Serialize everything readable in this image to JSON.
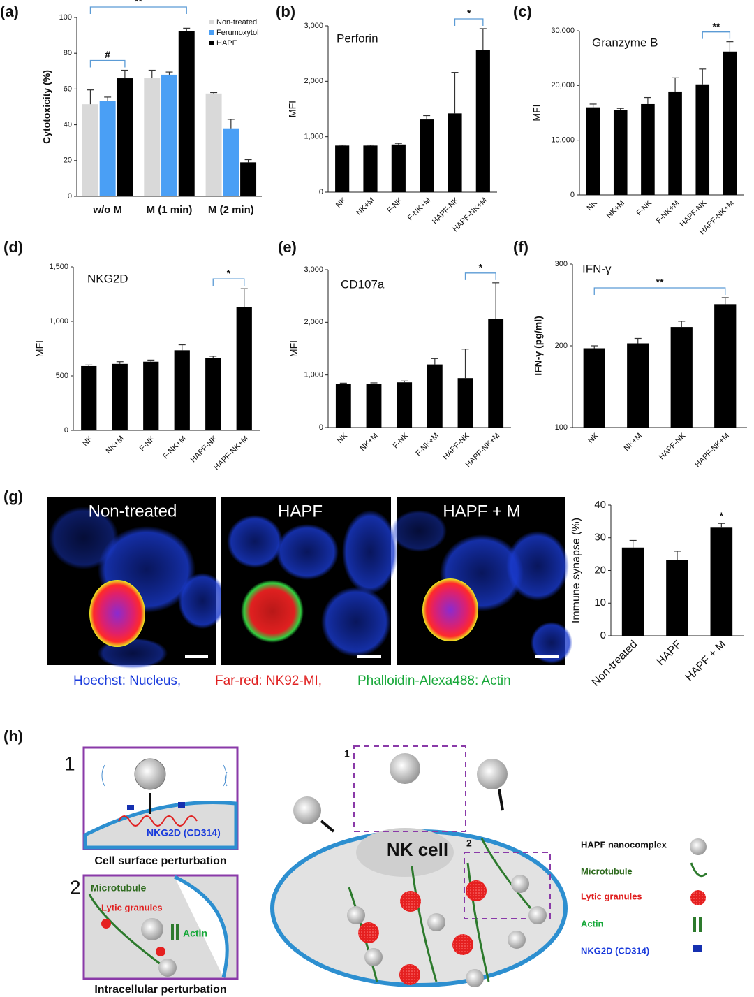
{
  "chart_data": [
    {
      "type": "bar",
      "label": "(a)",
      "ylabel": "Cytotoxicity (%)",
      "categories": [
        "w/o M",
        "M (1 min)",
        "M (2 min)"
      ],
      "series": [
        {
          "name": "Non-treated",
          "color": "#d9d9d9",
          "values": [
            51.5,
            66,
            57.5
          ],
          "errors": [
            8,
            4.5,
            0.5
          ]
        },
        {
          "name": "Ferumoxytol",
          "color": "#4a9ff5",
          "values": [
            53.5,
            68,
            38
          ],
          "errors": [
            2,
            1.5,
            5
          ]
        },
        {
          "name": "HAPF",
          "color": "#000000",
          "values": [
            66,
            92.5,
            19
          ],
          "errors": [
            4.5,
            1.5,
            1.5
          ]
        }
      ],
      "ylim": [
        0,
        100
      ],
      "yticks": [
        0,
        20,
        40,
        60,
        80,
        100
      ],
      "legend": "top-right",
      "annotations": [
        {
          "text": "#",
          "span": [
            [
              "w/o M",
              "Non-treated"
            ],
            [
              "w/o M",
              "HAPF"
            ]
          ]
        },
        {
          "text": "**",
          "span": [
            [
              "w/o M",
              "Non-treated"
            ],
            [
              "M (1 min)",
              "HAPF"
            ]
          ]
        }
      ]
    },
    {
      "type": "bar",
      "label": "(b)",
      "title": "Perforin",
      "ylabel": "MFI",
      "color": "#000000",
      "categories": [
        "NK",
        "NK+M",
        "F-NK",
        "F-NK+M",
        "HAPF-NK",
        "HAPF-NK+M"
      ],
      "values": [
        840,
        840,
        860,
        1310,
        1420,
        2560
      ],
      "errors": [
        10,
        10,
        20,
        70,
        740,
        390
      ],
      "ylim": [
        0,
        3000
      ],
      "yticks": [
        0,
        {
          "value": 1000,
          "label": "1,000"
        },
        {
          "value": 2000,
          "label": "2,000"
        },
        {
          "value": 3000,
          "label": "3,000"
        }
      ],
      "annotations": [
        {
          "text": "*",
          "span": [
            "HAPF-NK",
            "HAPF-NK+M"
          ]
        }
      ]
    },
    {
      "type": "bar",
      "label": "(c)",
      "title": "Granzyme B",
      "ylabel": "MFI",
      "color": "#000000",
      "categories": [
        "NK",
        "NK+M",
        "F-NK",
        "F-NK+M",
        "HAPF-NK",
        "HAPF-NK+M"
      ],
      "values": [
        16000,
        15500,
        16600,
        18900,
        20200,
        26200
      ],
      "errors": [
        600,
        300,
        1200,
        2500,
        2800,
        1800
      ],
      "ylim": [
        0,
        30000
      ],
      "yticks": [
        0,
        {
          "value": 10000,
          "label": "10,000"
        },
        {
          "value": 20000,
          "label": "20,000"
        },
        {
          "value": 30000,
          "label": "30,000"
        }
      ],
      "annotations": [
        {
          "text": "**",
          "span": [
            "HAPF-NK",
            "HAPF-NK+M"
          ]
        }
      ]
    },
    {
      "type": "bar",
      "label": "(d)",
      "title": "NKG2D",
      "ylabel": "MFI",
      "color": "#000000",
      "categories": [
        "NK",
        "NK+M",
        "F-NK",
        "F-NK+M",
        "HAPF-NK",
        "HAPF-NK+M"
      ],
      "values": [
        590,
        610,
        630,
        735,
        665,
        1130
      ],
      "errors": [
        10,
        20,
        15,
        50,
        15,
        170
      ],
      "ylim": [
        0,
        1500
      ],
      "yticks": [
        0,
        500,
        {
          "value": 1000,
          "label": "1,000"
        },
        {
          "value": 1500,
          "label": "1,500"
        }
      ],
      "annotations": [
        {
          "text": "*",
          "span": [
            "HAPF-NK",
            "HAPF-NK+M"
          ]
        }
      ]
    },
    {
      "type": "bar",
      "label": "(e)",
      "title": "CD107a",
      "ylabel": "MFI",
      "color": "#000000",
      "categories": [
        "NK",
        "NK+M",
        "F-NK",
        "F-NK+M",
        "HAPF-NK",
        "HAPF-NK+M"
      ],
      "values": [
        830,
        835,
        860,
        1200,
        940,
        2060
      ],
      "errors": [
        15,
        15,
        25,
        110,
        550,
        690
      ],
      "ylim": [
        0,
        3000
      ],
      "yticks": [
        0,
        {
          "value": 1000,
          "label": "1,000"
        },
        {
          "value": 2000,
          "label": "2,000"
        },
        {
          "value": 3000,
          "label": "3,000"
        }
      ],
      "annotations": [
        {
          "text": "*",
          "span": [
            "HAPF-NK",
            "HAPF-NK+M"
          ]
        }
      ]
    },
    {
      "type": "bar",
      "label": "(f)",
      "title": "IFN-γ",
      "ylabel": "IFN-γ  (pg/ml)",
      "color": "#000000",
      "categories": [
        "NK",
        "NK+M",
        "HAPF-NK",
        "HAPF-NK+M"
      ],
      "values": [
        197,
        203,
        223,
        251
      ],
      "errors": [
        3,
        6,
        7,
        8
      ],
      "ylim": [
        100,
        300
      ],
      "yticks": [
        100,
        200,
        300
      ],
      "annotations": [
        {
          "text": "**",
          "span": [
            "NK",
            "HAPF-NK+M"
          ]
        }
      ]
    },
    {
      "type": "bar",
      "ylabel": "Immune synapse (%)",
      "color": "#000000",
      "categories": [
        "Non-treated",
        "HAPF",
        "HAPF + M"
      ],
      "values": [
        27,
        23.3,
        33.1
      ],
      "errors": [
        2.2,
        2.6,
        1.3
      ],
      "ylim": [
        0,
        40
      ],
      "yticks": [
        0,
        10,
        20,
        30,
        40
      ],
      "annotations": [
        {
          "text": "*",
          "span": [
            "HAPF + M"
          ]
        }
      ]
    }
  ],
  "microscopy": {
    "label": "(g)",
    "images": [
      "Non-treated",
      "HAPF",
      "HAPF + M"
    ],
    "caption": [
      "Hoechst: Nucleus,",
      "Far-red: NK92-MI,",
      "Phalloidin-Alexa488: Actin"
    ]
  },
  "schematic": {
    "label": "(h)",
    "inset_1": {
      "number": "1",
      "receptor": "NKG2D (CD314)",
      "caption": "Cell surface perturbation"
    },
    "inset_2": {
      "number": "2",
      "microtubule": "Microtubule",
      "granules": "Lytic granules",
      "actin": "Actin",
      "caption": "Intracellular perturbation"
    },
    "cell": {
      "label": "NK cell",
      "box_1": "1",
      "box_2": "2"
    },
    "legend": [
      "HAPF nanocomplex",
      "Microtubule",
      "Lytic granules",
      "Actin",
      "NKG2D (CD314)"
    ]
  }
}
